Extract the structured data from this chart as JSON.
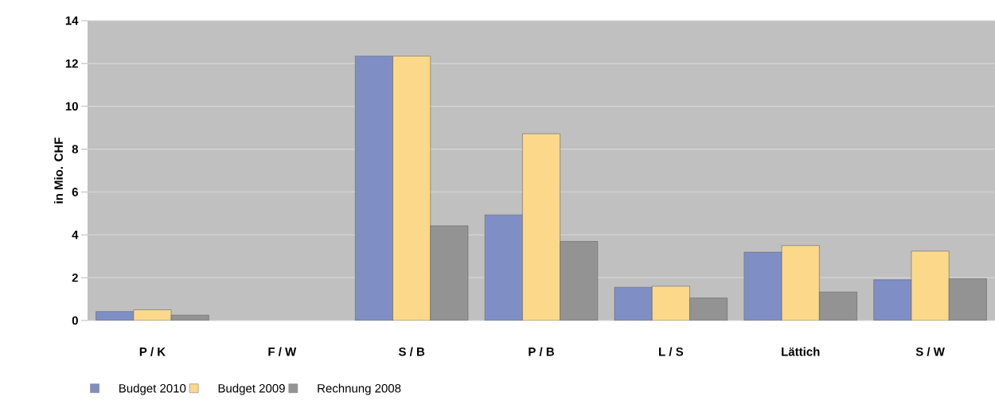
{
  "chart_data": {
    "type": "bar",
    "ylabel": "in Mio. CHF",
    "categories": [
      "P / K",
      "F / W",
      "S / B",
      "P / B",
      "L / S",
      "Lättich",
      "S / W"
    ],
    "series": [
      {
        "name": "Budget 2010",
        "color": "#7f8fc6",
        "values": [
          0.42,
          null,
          12.35,
          4.93,
          1.55,
          3.19,
          1.9
        ]
      },
      {
        "name": "Budget 2009",
        "color": "#fcd98a",
        "values": [
          0.5,
          null,
          12.35,
          8.72,
          1.6,
          3.5,
          3.24
        ]
      },
      {
        "name": "Rechnung 2008",
        "color": "#939393",
        "values": [
          0.25,
          null,
          4.42,
          3.69,
          1.05,
          1.33,
          1.95
        ]
      }
    ],
    "ylim": [
      0,
      14
    ],
    "yticks": [
      0,
      2,
      4,
      6,
      8,
      10,
      12,
      14
    ],
    "grid": "y",
    "legend": "bottom left"
  }
}
